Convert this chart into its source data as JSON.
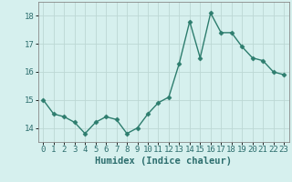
{
  "x": [
    0,
    1,
    2,
    3,
    4,
    5,
    6,
    7,
    8,
    9,
    10,
    11,
    12,
    13,
    14,
    15,
    16,
    17,
    18,
    19,
    20,
    21,
    22,
    23
  ],
  "y": [
    15.0,
    14.5,
    14.4,
    14.2,
    13.8,
    14.2,
    14.4,
    14.3,
    13.8,
    14.0,
    14.5,
    14.9,
    15.1,
    16.3,
    17.8,
    16.5,
    18.1,
    17.4,
    17.4,
    16.9,
    16.5,
    16.4,
    16.0,
    15.9
  ],
  "xlabel": "Humidex (Indice chaleur)",
  "ylim": [
    13.5,
    18.5
  ],
  "xlim": [
    -0.5,
    23.5
  ],
  "yticks": [
    14,
    15,
    16,
    17,
    18
  ],
  "xticks": [
    0,
    1,
    2,
    3,
    4,
    5,
    6,
    7,
    8,
    9,
    10,
    11,
    12,
    13,
    14,
    15,
    16,
    17,
    18,
    19,
    20,
    21,
    22,
    23
  ],
  "line_color": "#2d7d6e",
  "marker": "D",
  "marker_size": 2.5,
  "bg_color": "#d6f0ee",
  "grid_color": "#bcd8d4",
  "tick_label_fontsize": 6.5,
  "xlabel_fontsize": 7.5,
  "linewidth": 1.0
}
